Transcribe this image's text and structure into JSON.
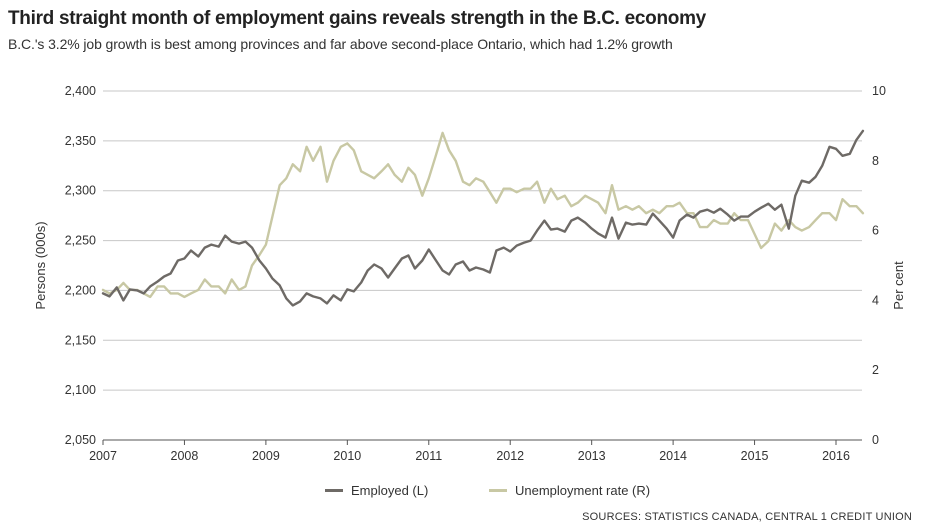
{
  "chart_data": {
    "type": "line",
    "title": "Third straight month of employment gains reveals strength in the B.C. economy",
    "subtitle": "B.C.'s 3.2% job growth is best among provinces and far above second-place Ontario, which had 1.2% growth",
    "ylabel": "Persons (000s)",
    "y2label": "Per cent",
    "ylim": [
      2050,
      2400
    ],
    "y2lim": [
      0,
      10
    ],
    "xlim": [
      2007,
      2016.33
    ],
    "x_ticks": [
      "2007",
      "2008",
      "2009",
      "2010",
      "2011",
      "2012",
      "2013",
      "2014",
      "2015",
      "2016"
    ],
    "y_ticks": [
      "2,050",
      "2,100",
      "2,150",
      "2,200",
      "2,250",
      "2,300",
      "2,350",
      "2,400"
    ],
    "y2_ticks": [
      "0",
      "2",
      "4",
      "6",
      "8",
      "10"
    ],
    "legend_position": "bottom",
    "grid": true,
    "colors": {
      "employed": "#6e6a66",
      "unemployment": "#c8c8a4",
      "grid": "#c7c7c7"
    },
    "series": [
      {
        "name": "Employed (L)",
        "axis": "left",
        "points": [
          [
            2007.0,
            2197
          ],
          [
            2007.08,
            2194
          ],
          [
            2007.17,
            2203
          ],
          [
            2007.25,
            2190
          ],
          [
            2007.33,
            2201
          ],
          [
            2007.42,
            2200
          ],
          [
            2007.5,
            2197
          ],
          [
            2007.58,
            2204
          ],
          [
            2007.67,
            2209
          ],
          [
            2007.75,
            2214
          ],
          [
            2007.83,
            2217
          ],
          [
            2007.92,
            2230
          ],
          [
            2008.0,
            2232
          ],
          [
            2008.08,
            2240
          ],
          [
            2008.17,
            2234
          ],
          [
            2008.25,
            2243
          ],
          [
            2008.33,
            2246
          ],
          [
            2008.42,
            2244
          ],
          [
            2008.5,
            2255
          ],
          [
            2008.58,
            2249
          ],
          [
            2008.67,
            2247
          ],
          [
            2008.75,
            2249
          ],
          [
            2008.83,
            2243
          ],
          [
            2008.92,
            2230
          ],
          [
            2009.0,
            2222
          ],
          [
            2009.08,
            2212
          ],
          [
            2009.17,
            2205
          ],
          [
            2009.25,
            2192
          ],
          [
            2009.33,
            2185
          ],
          [
            2009.42,
            2189
          ],
          [
            2009.5,
            2197
          ],
          [
            2009.58,
            2194
          ],
          [
            2009.67,
            2192
          ],
          [
            2009.75,
            2187
          ],
          [
            2009.83,
            2195
          ],
          [
            2009.92,
            2190
          ],
          [
            2010.0,
            2201
          ],
          [
            2010.08,
            2199
          ],
          [
            2010.17,
            2208
          ],
          [
            2010.25,
            2220
          ],
          [
            2010.33,
            2226
          ],
          [
            2010.42,
            2222
          ],
          [
            2010.5,
            2213
          ],
          [
            2010.58,
            2222
          ],
          [
            2010.67,
            2232
          ],
          [
            2010.75,
            2235
          ],
          [
            2010.83,
            2222
          ],
          [
            2010.92,
            2230
          ],
          [
            2011.0,
            2241
          ],
          [
            2011.08,
            2231
          ],
          [
            2011.17,
            2220
          ],
          [
            2011.25,
            2216
          ],
          [
            2011.33,
            2226
          ],
          [
            2011.42,
            2229
          ],
          [
            2011.5,
            2220
          ],
          [
            2011.58,
            2223
          ],
          [
            2011.67,
            2221
          ],
          [
            2011.75,
            2218
          ],
          [
            2011.83,
            2240
          ],
          [
            2011.92,
            2243
          ],
          [
            2012.0,
            2239
          ],
          [
            2012.08,
            2245
          ],
          [
            2012.17,
            2248
          ],
          [
            2012.25,
            2250
          ],
          [
            2012.33,
            2260
          ],
          [
            2012.42,
            2270
          ],
          [
            2012.5,
            2261
          ],
          [
            2012.58,
            2262
          ],
          [
            2012.67,
            2259
          ],
          [
            2012.75,
            2270
          ],
          [
            2012.83,
            2273
          ],
          [
            2012.92,
            2268
          ],
          [
            2013.0,
            2262
          ],
          [
            2013.08,
            2257
          ],
          [
            2013.17,
            2253
          ],
          [
            2013.25,
            2273
          ],
          [
            2013.33,
            2252
          ],
          [
            2013.42,
            2268
          ],
          [
            2013.5,
            2266
          ],
          [
            2013.58,
            2267
          ],
          [
            2013.67,
            2266
          ],
          [
            2013.75,
            2277
          ],
          [
            2013.83,
            2270
          ],
          [
            2013.92,
            2262
          ],
          [
            2014.0,
            2253
          ],
          [
            2014.08,
            2270
          ],
          [
            2014.17,
            2276
          ],
          [
            2014.25,
            2273
          ],
          [
            2014.33,
            2279
          ],
          [
            2014.42,
            2281
          ],
          [
            2014.5,
            2278
          ],
          [
            2014.58,
            2282
          ],
          [
            2014.67,
            2276
          ],
          [
            2014.75,
            2270
          ],
          [
            2014.83,
            2274
          ],
          [
            2014.92,
            2274
          ],
          [
            2015.0,
            2279
          ],
          [
            2015.08,
            2283
          ],
          [
            2015.17,
            2287
          ],
          [
            2015.25,
            2281
          ],
          [
            2015.33,
            2286
          ],
          [
            2015.42,
            2262
          ],
          [
            2015.5,
            2295
          ],
          [
            2015.58,
            2310
          ],
          [
            2015.67,
            2308
          ],
          [
            2015.75,
            2314
          ],
          [
            2015.83,
            2325
          ],
          [
            2015.92,
            2344
          ],
          [
            2016.0,
            2342
          ],
          [
            2016.08,
            2335
          ],
          [
            2016.17,
            2337
          ],
          [
            2016.25,
            2351
          ],
          [
            2016.33,
            2360
          ]
        ]
      },
      {
        "name": "Unemployment rate (R)",
        "axis": "right",
        "points": [
          [
            2007.0,
            4.3
          ],
          [
            2007.08,
            4.2
          ],
          [
            2007.17,
            4.3
          ],
          [
            2007.25,
            4.5
          ],
          [
            2007.33,
            4.3
          ],
          [
            2007.42,
            4.3
          ],
          [
            2007.5,
            4.2
          ],
          [
            2007.58,
            4.1
          ],
          [
            2007.67,
            4.4
          ],
          [
            2007.75,
            4.4
          ],
          [
            2007.83,
            4.2
          ],
          [
            2007.92,
            4.2
          ],
          [
            2008.0,
            4.1
          ],
          [
            2008.08,
            4.2
          ],
          [
            2008.17,
            4.3
          ],
          [
            2008.25,
            4.6
          ],
          [
            2008.33,
            4.4
          ],
          [
            2008.42,
            4.4
          ],
          [
            2008.5,
            4.2
          ],
          [
            2008.58,
            4.6
          ],
          [
            2008.67,
            4.3
          ],
          [
            2008.75,
            4.4
          ],
          [
            2008.83,
            5.0
          ],
          [
            2008.92,
            5.3
          ],
          [
            2009.0,
            5.6
          ],
          [
            2009.08,
            6.4
          ],
          [
            2009.17,
            7.3
          ],
          [
            2009.25,
            7.5
          ],
          [
            2009.33,
            7.9
          ],
          [
            2009.42,
            7.7
          ],
          [
            2009.5,
            8.4
          ],
          [
            2009.58,
            8.0
          ],
          [
            2009.67,
            8.4
          ],
          [
            2009.75,
            7.4
          ],
          [
            2009.83,
            8.0
          ],
          [
            2009.92,
            8.4
          ],
          [
            2010.0,
            8.5
          ],
          [
            2010.08,
            8.3
          ],
          [
            2010.17,
            7.7
          ],
          [
            2010.25,
            7.6
          ],
          [
            2010.33,
            7.5
          ],
          [
            2010.42,
            7.7
          ],
          [
            2010.5,
            7.9
          ],
          [
            2010.58,
            7.6
          ],
          [
            2010.67,
            7.4
          ],
          [
            2010.75,
            7.8
          ],
          [
            2010.83,
            7.6
          ],
          [
            2010.92,
            7.0
          ],
          [
            2011.0,
            7.5
          ],
          [
            2011.08,
            8.1
          ],
          [
            2011.17,
            8.8
          ],
          [
            2011.25,
            8.3
          ],
          [
            2011.33,
            8.0
          ],
          [
            2011.42,
            7.4
          ],
          [
            2011.5,
            7.3
          ],
          [
            2011.58,
            7.5
          ],
          [
            2011.67,
            7.4
          ],
          [
            2011.75,
            7.1
          ],
          [
            2011.83,
            6.8
          ],
          [
            2011.92,
            7.2
          ],
          [
            2012.0,
            7.2
          ],
          [
            2012.08,
            7.1
          ],
          [
            2012.17,
            7.2
          ],
          [
            2012.25,
            7.2
          ],
          [
            2012.33,
            7.4
          ],
          [
            2012.42,
            6.8
          ],
          [
            2012.5,
            7.2
          ],
          [
            2012.58,
            6.9
          ],
          [
            2012.67,
            7.0
          ],
          [
            2012.75,
            6.7
          ],
          [
            2012.83,
            6.8
          ],
          [
            2012.92,
            7.0
          ],
          [
            2013.0,
            6.9
          ],
          [
            2013.08,
            6.8
          ],
          [
            2013.17,
            6.5
          ],
          [
            2013.25,
            7.3
          ],
          [
            2013.33,
            6.6
          ],
          [
            2013.42,
            6.7
          ],
          [
            2013.5,
            6.6
          ],
          [
            2013.58,
            6.7
          ],
          [
            2013.67,
            6.5
          ],
          [
            2013.75,
            6.6
          ],
          [
            2013.83,
            6.5
          ],
          [
            2013.92,
            6.7
          ],
          [
            2014.0,
            6.7
          ],
          [
            2014.08,
            6.8
          ],
          [
            2014.17,
            6.5
          ],
          [
            2014.25,
            6.5
          ],
          [
            2014.33,
            6.1
          ],
          [
            2014.42,
            6.1
          ],
          [
            2014.5,
            6.3
          ],
          [
            2014.58,
            6.2
          ],
          [
            2014.67,
            6.2
          ],
          [
            2014.75,
            6.5
          ],
          [
            2014.83,
            6.3
          ],
          [
            2014.92,
            6.3
          ],
          [
            2015.0,
            5.9
          ],
          [
            2015.08,
            5.5
          ],
          [
            2015.17,
            5.7
          ],
          [
            2015.25,
            6.2
          ],
          [
            2015.33,
            6.0
          ],
          [
            2015.42,
            6.3
          ],
          [
            2015.5,
            6.1
          ],
          [
            2015.58,
            6.0
          ],
          [
            2015.67,
            6.1
          ],
          [
            2015.75,
            6.3
          ],
          [
            2015.83,
            6.5
          ],
          [
            2015.92,
            6.5
          ],
          [
            2016.0,
            6.3
          ],
          [
            2016.08,
            6.9
          ],
          [
            2016.17,
            6.7
          ],
          [
            2016.25,
            6.7
          ],
          [
            2016.33,
            6.5
          ]
        ]
      }
    ],
    "source": "SOURCES: STATISTICS CANADA, CENTRAL 1 CREDIT UNION"
  }
}
